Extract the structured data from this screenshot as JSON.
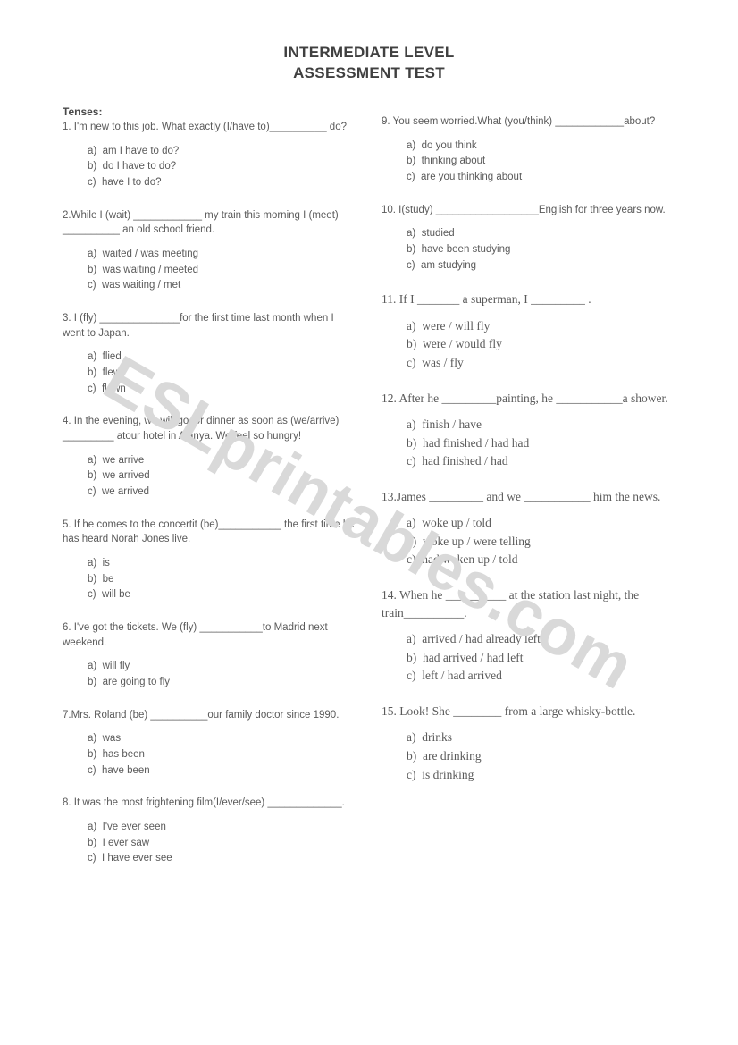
{
  "title_line1": "INTERMEDIATE LEVEL",
  "title_line2": "ASSESSMENT TEST",
  "section_heading": "Tenses:",
  "watermark": "ESLprintables.com",
  "left": [
    {
      "n": "1",
      "stem": "1. I'm new to this job. What exactly (I/have to)__________ do?",
      "opts": [
        "am I have to do?",
        "do I have to do?",
        "have I to do?"
      ],
      "serif": false
    },
    {
      "n": "2",
      "stem": "2.While I (wait) ____________ my train this morning I (meet) __________ an old school friend.",
      "opts": [
        "waited / was meeting",
        "was waiting / meeted",
        "was waiting / met"
      ],
      "serif": false
    },
    {
      "n": "3",
      "stem": "3. I (fly) ______________for the first time last month when I went to Japan.",
      "opts": [
        "flied",
        "flew",
        "flown"
      ],
      "serif": false
    },
    {
      "n": "4",
      "stem": "4. In the evening, we will go for dinner as soon as (we/arrive) _________ atour hotel in Alanya. We feel so hungry!",
      "opts": [
        "we arrive",
        "we arrived",
        "we arrived"
      ],
      "serif": false
    },
    {
      "n": "5",
      "stem": "5. If he comes to the concertit (be)___________ the first time he has heard Norah Jones live.",
      "opts": [
        "is",
        "be",
        "will be"
      ],
      "serif": false
    },
    {
      "n": "6",
      "stem": "6. I've got the tickets. We (fly) ___________to Madrid next weekend.",
      "opts": [
        "will fly",
        "are going to fly"
      ],
      "serif": false
    },
    {
      "n": "7",
      "stem": "7.Mrs. Roland (be) __________our family doctor since 1990.",
      "opts": [
        "was",
        "has been",
        "have been"
      ],
      "serif": false
    },
    {
      "n": "8",
      "stem": "8. It was the most frightening film(I/ever/see) _____________.",
      "opts": [
        "I've ever seen",
        "I ever saw",
        "I have ever see"
      ],
      "serif": false
    }
  ],
  "right": [
    {
      "n": "9",
      "stem": "9. You seem worried.What (you/think) ____________about?",
      "opts": [
        "do you think",
        "thinking about",
        "are you thinking about"
      ],
      "serif": false
    },
    {
      "n": "10",
      "stem": "10. I(study) __________________English for three years now.",
      "opts": [
        "studied",
        "have been studying",
        "am studying"
      ],
      "serif": false
    },
    {
      "n": "11",
      "stem": "11. If I _______ a superman, I _________ .",
      "opts": [
        "were / will fly",
        "were / would fly",
        "was / fly"
      ],
      "serif": true
    },
    {
      "n": "12",
      "stem": "12. After he _________painting, he ___________a shower.",
      "opts": [
        "finish / have",
        "had finished / had had",
        "had finished / had"
      ],
      "serif": true
    },
    {
      "n": "13",
      "stem": "13.James _________ and we ___________ him the news.",
      "opts": [
        "woke up / told",
        "woke up / were telling",
        "had woken up / told"
      ],
      "serif": true
    },
    {
      "n": "14",
      "stem": "14. When he __________ at the station last night, the train__________.",
      "opts": [
        "arrived / had already left",
        "had arrived / had left",
        "left / had arrived"
      ],
      "serif": true
    },
    {
      "n": "15",
      "stem": "15. Look! She ________ from a large whisky-bottle.",
      "opts": [
        "drinks",
        "are drinking",
        "is drinking"
      ],
      "serif": true
    }
  ],
  "option_letters": [
    "a)",
    "b)",
    "c)"
  ]
}
